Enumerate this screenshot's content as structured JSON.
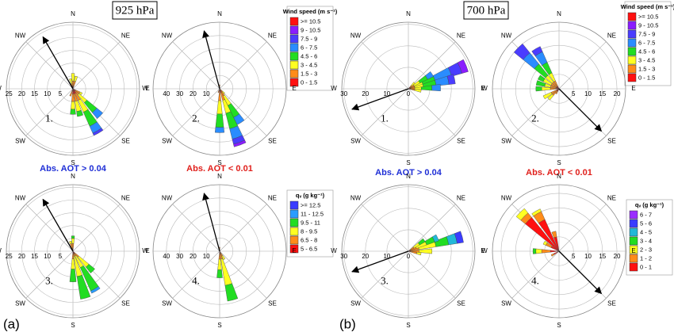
{
  "panel_labels": [
    "(a)",
    "(b)"
  ],
  "pressure": [
    "925 hPa",
    "700 hPa"
  ],
  "directions": [
    "N",
    "NE",
    "E",
    "SE",
    "S",
    "SW",
    "W",
    "NW"
  ],
  "aot": [
    {
      "text": "Abs. AOT > 0.04",
      "color": "#1f2fd6"
    },
    {
      "text": "Abs. AOT < 0.01",
      "color": "#e0201c"
    }
  ],
  "legends": [
    {
      "title": "Wind speed (m s⁻¹)",
      "items": [
        ">= 10.5",
        "9 - 10.5",
        "7.5 - 9",
        "6 - 7.5",
        "4.5 - 6",
        "3 - 4.5",
        "1.5 - 3",
        "0 - 1.5"
      ],
      "colors": [
        "#ff1010",
        "#8a1cff",
        "#4a3cff",
        "#2a8cff",
        "#22dd22",
        "#ffff22",
        "#ff8c1a",
        "#ff1010"
      ]
    },
    {
      "title": "qᵥ (g kg⁻¹)",
      "items": [
        ">= 12.5",
        "11 - 12.5",
        "9.5 - 11",
        "8 - 9.5",
        "6.5 - 8",
        "5 - 6.5"
      ],
      "colors": [
        "#3a3cff",
        "#2a9cff",
        "#22dd22",
        "#ffff22",
        "#ff8c1a",
        "#ff1010"
      ]
    },
    {
      "title": "Wind speed (m s⁻¹)",
      "items": [
        ">= 10.5",
        "9 - 10.5",
        "7.5 - 9",
        "6 - 7.5",
        "4.5 - 6",
        "3 - 4.5",
        "1.5 - 3",
        "0 - 1.5"
      ],
      "colors": [
        "#ff1010",
        "#8a1cff",
        "#4a3cff",
        "#2a8cff",
        "#22dd22",
        "#ffff22",
        "#ff8c1a",
        "#ff1010"
      ]
    },
    {
      "title": "qᵥ (g kg⁻¹)",
      "items": [
        "6 - 7",
        "5 - 6",
        "4 - 5",
        "3 - 4",
        "2 - 3",
        "1 - 2",
        "0 - 1"
      ],
      "colors": [
        "#9a2cff",
        "#3a3cff",
        "#22b8d8",
        "#22dd22",
        "#ffff22",
        "#ff8c1a",
        "#ff1010"
      ]
    }
  ],
  "chart_data": [
    {
      "type": "windrose",
      "number": "1.",
      "legend": 0,
      "rmax": 26,
      "rings": [
        5,
        10,
        15,
        20,
        25
      ],
      "label_side": "W",
      "arrow_direction": 330,
      "petals": [
        {
          "dir": 150,
          "values": [
            2,
            3,
            5,
            6,
            3,
            1
          ]
        },
        {
          "dir": 135,
          "values": [
            1,
            2,
            4,
            5,
            3
          ]
        },
        {
          "dir": 165,
          "values": [
            2,
            3,
            4,
            2
          ]
        },
        {
          "dir": 180,
          "values": [
            2,
            3,
            3,
            2
          ]
        },
        {
          "dir": 0,
          "values": [
            1,
            2,
            3
          ]
        },
        {
          "dir": 15,
          "values": [
            1,
            2,
            2
          ]
        },
        {
          "dir": 345,
          "values": [
            1,
            1,
            2
          ]
        },
        {
          "dir": 200,
          "values": [
            1,
            2
          ]
        },
        {
          "dir": 120,
          "values": [
            1,
            2,
            1
          ]
        }
      ]
    },
    {
      "type": "windrose",
      "number": "2.",
      "legend": 0,
      "rmax": 50,
      "rings": [
        10,
        20,
        30,
        40
      ],
      "label_side": "W",
      "arrow_direction": 345,
      "petals": [
        {
          "dir": 160,
          "values": [
            3,
            6,
            10,
            12,
            8,
            4,
            2
          ]
        },
        {
          "dir": 148,
          "values": [
            2,
            4,
            8,
            10,
            6
          ]
        },
        {
          "dir": 180,
          "values": [
            3,
            6,
            10,
            10,
            4
          ]
        },
        {
          "dir": 0,
          "values": [
            1,
            2
          ]
        },
        {
          "dir": 200,
          "values": [
            1,
            2
          ]
        },
        {
          "dir": 135,
          "values": [
            1,
            2,
            2
          ]
        }
      ]
    },
    {
      "type": "windrose",
      "number": "3.",
      "legend": 1,
      "rmax": 26,
      "rings": [
        5,
        10,
        15,
        20,
        25
      ],
      "label_side": "W",
      "arrow_direction": 330,
      "petals": [
        {
          "dir": 150,
          "values": [
            1,
            1,
            5,
            10,
            1
          ]
        },
        {
          "dir": 165,
          "values": [
            1,
            1,
            8,
            9
          ]
        },
        {
          "dir": 180,
          "values": [
            1,
            2,
            4,
            5
          ]
        },
        {
          "dir": 135,
          "values": [
            1,
            2,
            5,
            3
          ]
        },
        {
          "dir": 0,
          "values": [
            1,
            2,
            2,
            1
          ]
        },
        {
          "dir": 345,
          "values": [
            1,
            2,
            1
          ]
        }
      ]
    },
    {
      "type": "windrose",
      "number": "4.",
      "legend": 1,
      "rmax": 50,
      "rings": [
        10,
        20,
        30,
        40
      ],
      "label_side": "W",
      "arrow_direction": 345,
      "petals": [
        {
          "dir": 165,
          "values": [
            2,
            4,
            20,
            12
          ]
        },
        {
          "dir": 180,
          "values": [
            2,
            4,
            8,
            6
          ]
        },
        {
          "dir": 0,
          "values": [
            1,
            2
          ]
        },
        {
          "dir": 150,
          "values": [
            1,
            3,
            3
          ]
        }
      ]
    },
    {
      "type": "windrose",
      "number": "1.",
      "legend": 2,
      "rmax": 31,
      "rings": [
        0,
        10,
        20,
        30
      ],
      "label_side": "W",
      "arrow_direction": 250,
      "petals": [
        {
          "dir": 68,
          "values": [
            1,
            2,
            4,
            6,
            8,
            5,
            3
          ]
        },
        {
          "dir": 78,
          "values": [
            1,
            2,
            4,
            6,
            6,
            3
          ]
        },
        {
          "dir": 58,
          "values": [
            1,
            2,
            3,
            4,
            3
          ]
        },
        {
          "dir": 88,
          "values": [
            1,
            2,
            3,
            5,
            4
          ]
        },
        {
          "dir": 100,
          "values": [
            1,
            2,
            3
          ]
        },
        {
          "dir": 45,
          "values": [
            1,
            1,
            2
          ]
        }
      ]
    },
    {
      "type": "windrose",
      "number": "2.",
      "legend": 2,
      "rmax": 23,
      "rings": [
        5,
        10,
        15,
        20
      ],
      "label_side": "E",
      "arrow_direction": 135,
      "petals": [
        {
          "dir": 315,
          "values": [
            1,
            2,
            3,
            5,
            5,
            4
          ]
        },
        {
          "dir": 330,
          "values": [
            1,
            2,
            3,
            4,
            4,
            2
          ]
        },
        {
          "dir": 300,
          "values": [
            1,
            2,
            3,
            2
          ]
        },
        {
          "dir": 285,
          "values": [
            1,
            2,
            2,
            3
          ]
        },
        {
          "dir": 270,
          "values": [
            1,
            2,
            3,
            2
          ]
        },
        {
          "dir": 240,
          "values": [
            1,
            2,
            3
          ]
        },
        {
          "dir": 225,
          "values": [
            1,
            2,
            2
          ]
        },
        {
          "dir": 210,
          "values": [
            1,
            1
          ]
        }
      ]
    },
    {
      "type": "windrose",
      "number": "3.",
      "legend": 3,
      "rmax": 31,
      "rings": [
        0,
        10,
        20,
        30
      ],
      "label_side": "W",
      "arrow_direction": 250,
      "petals": [
        {
          "dir": 75,
          "values": [
            1,
            4,
            8,
            6,
            4,
            3
          ]
        },
        {
          "dir": 65,
          "values": [
            1,
            3,
            5,
            4,
            2
          ]
        },
        {
          "dir": 55,
          "values": [
            1,
            2,
            3,
            3
          ]
        },
        {
          "dir": 90,
          "values": [
            1,
            4,
            6
          ]
        },
        {
          "dir": 102,
          "values": [
            1,
            3,
            2
          ]
        }
      ]
    },
    {
      "type": "windrose",
      "number": "4.",
      "legend": 3,
      "rmax": 23,
      "rings": [
        5,
        10,
        15,
        20
      ],
      "label_side": "E",
      "arrow_direction": 135,
      "petals": [
        {
          "dir": 315,
          "values": [
            15,
            2,
            2
          ]
        },
        {
          "dir": 330,
          "values": [
            12,
            3,
            1
          ]
        },
        {
          "dir": 345,
          "values": [
            5,
            2
          ]
        },
        {
          "dir": 300,
          "values": [
            3,
            2,
            1
          ]
        },
        {
          "dir": 270,
          "values": [
            3,
            3,
            2,
            1
          ]
        },
        {
          "dir": 240,
          "values": [
            2,
            1
          ]
        }
      ]
    }
  ]
}
